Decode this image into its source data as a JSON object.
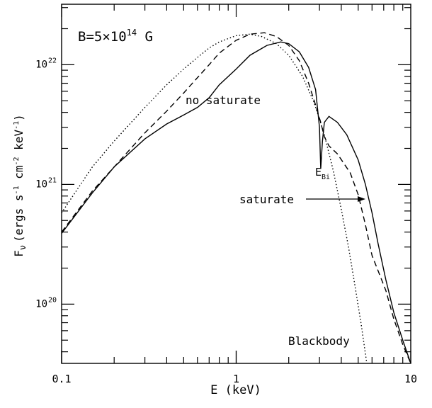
{
  "chart_data": {
    "type": "line",
    "xscale": "log",
    "yscale": "log",
    "xlim": [
      0.1,
      10
    ],
    "ylim": [
      3.2e+19,
      3.2e+22
    ],
    "grid": false,
    "xlabel": "E (keV)",
    "ylabel": "F_ν (ergs s^-1 cm^-2 keV^-1)",
    "x_ticks": [
      {
        "value": 0.1,
        "label": "0.1"
      },
      {
        "value": 1,
        "label": "1"
      },
      {
        "value": 10,
        "label": "10"
      }
    ],
    "y_ticks": [
      {
        "value": 1e+20,
        "base": "10",
        "exp": "20"
      },
      {
        "value": 1e+21,
        "base": "10",
        "exp": "21"
      },
      {
        "value": 1e+22,
        "base": "10",
        "exp": "22"
      }
    ],
    "annotations": {
      "field_prefix": "B=5×10",
      "field_exp": "14",
      "field_suffix": " G",
      "no_saturate": "no saturate",
      "saturate": "saturate",
      "blackbody": "Blackbody",
      "ebi_main": "E",
      "ebi_sub": "Bi"
    },
    "series": [
      {
        "style": "solid",
        "points": [
          [
            0.1,
            3.9e+20
          ],
          [
            0.15,
            8.5e+20
          ],
          [
            0.2,
            1.4e+21
          ],
          [
            0.3,
            2.4e+21
          ],
          [
            0.4,
            3.2e+21
          ],
          [
            0.5,
            3.8e+21
          ],
          [
            0.6,
            4.4e+21
          ],
          [
            0.7,
            5.3e+21
          ],
          [
            0.8,
            6.8e+21
          ],
          [
            1.0,
            9.2e+21
          ],
          [
            1.2,
            1.2e+22
          ],
          [
            1.5,
            1.45e+22
          ],
          [
            1.8,
            1.55e+22
          ],
          [
            2.0,
            1.5e+22
          ],
          [
            2.3,
            1.28e+22
          ],
          [
            2.6,
            9.5e+21
          ],
          [
            2.85,
            6.2e+21
          ],
          [
            3.0,
            3e+21
          ],
          [
            3.05,
            1.35e+21
          ],
          [
            3.12,
            2.3e+21
          ],
          [
            3.2,
            3.3e+21
          ],
          [
            3.4,
            3.7e+21
          ],
          [
            3.8,
            3.3e+21
          ],
          [
            4.3,
            2.6e+21
          ],
          [
            5.0,
            1.6e+21
          ],
          [
            5.5,
            1e+21
          ],
          [
            6.0,
            5.8e+20
          ],
          [
            6.5,
            3.2e+20
          ],
          [
            7.2,
            1.6e+20
          ],
          [
            8.0,
            8.5e+19
          ],
          [
            9.0,
            5e+19
          ],
          [
            10.0,
            3.2e+19
          ]
        ]
      },
      {
        "style": "dashed",
        "points": [
          [
            0.1,
            4e+20
          ],
          [
            0.15,
            8.8e+20
          ],
          [
            0.2,
            1.4e+21
          ],
          [
            0.3,
            2.7e+21
          ],
          [
            0.4,
            4.1e+21
          ],
          [
            0.5,
            5.8e+21
          ],
          [
            0.6,
            7.8e+21
          ],
          [
            0.7,
            1e+22
          ],
          [
            0.8,
            1.25e+22
          ],
          [
            1.0,
            1.6e+22
          ],
          [
            1.2,
            1.8e+22
          ],
          [
            1.45,
            1.85e+22
          ],
          [
            1.7,
            1.72e+22
          ],
          [
            2.0,
            1.45e+22
          ],
          [
            2.3,
            1.08e+22
          ],
          [
            2.6,
            7e+21
          ],
          [
            2.85,
            4.6e+21
          ],
          [
            3.05,
            3.3e+21
          ],
          [
            3.2,
            2.5e+21
          ],
          [
            3.4,
            2.1e+21
          ],
          [
            3.8,
            1.8e+21
          ],
          [
            4.5,
            1.25e+21
          ],
          [
            5.0,
            8.2e+20
          ],
          [
            5.5,
            4.6e+20
          ],
          [
            6.0,
            2.55e+20
          ],
          [
            6.5,
            1.9e+20
          ],
          [
            7.2,
            1.3e+20
          ],
          [
            8.0,
            7.5e+19
          ],
          [
            9.0,
            4.6e+19
          ],
          [
            10.0,
            3.2e+19
          ]
        ]
      },
      {
        "style": "dotted",
        "points": [
          [
            0.1,
            5.8e+20
          ],
          [
            0.15,
            1.4e+21
          ],
          [
            0.2,
            2.3e+21
          ],
          [
            0.3,
            4.4e+21
          ],
          [
            0.4,
            6.8e+21
          ],
          [
            0.5,
            9.2e+21
          ],
          [
            0.6,
            1.15e+22
          ],
          [
            0.7,
            1.38e+22
          ],
          [
            0.8,
            1.55e+22
          ],
          [
            1.0,
            1.75e+22
          ],
          [
            1.2,
            1.8e+22
          ],
          [
            1.4,
            1.72e+22
          ],
          [
            1.7,
            1.5e+22
          ],
          [
            2.0,
            1.2e+22
          ],
          [
            2.4,
            8e+21
          ],
          [
            2.8,
            4.8e+21
          ],
          [
            3.2,
            2.6e+21
          ],
          [
            3.6,
            1.3e+21
          ],
          [
            4.0,
            6.2e+20
          ],
          [
            4.4,
            3e+20
          ],
          [
            4.8,
            1.4e+20
          ],
          [
            5.2,
            6.8e+19
          ],
          [
            5.6,
            3.2e+19
          ]
        ]
      }
    ]
  }
}
